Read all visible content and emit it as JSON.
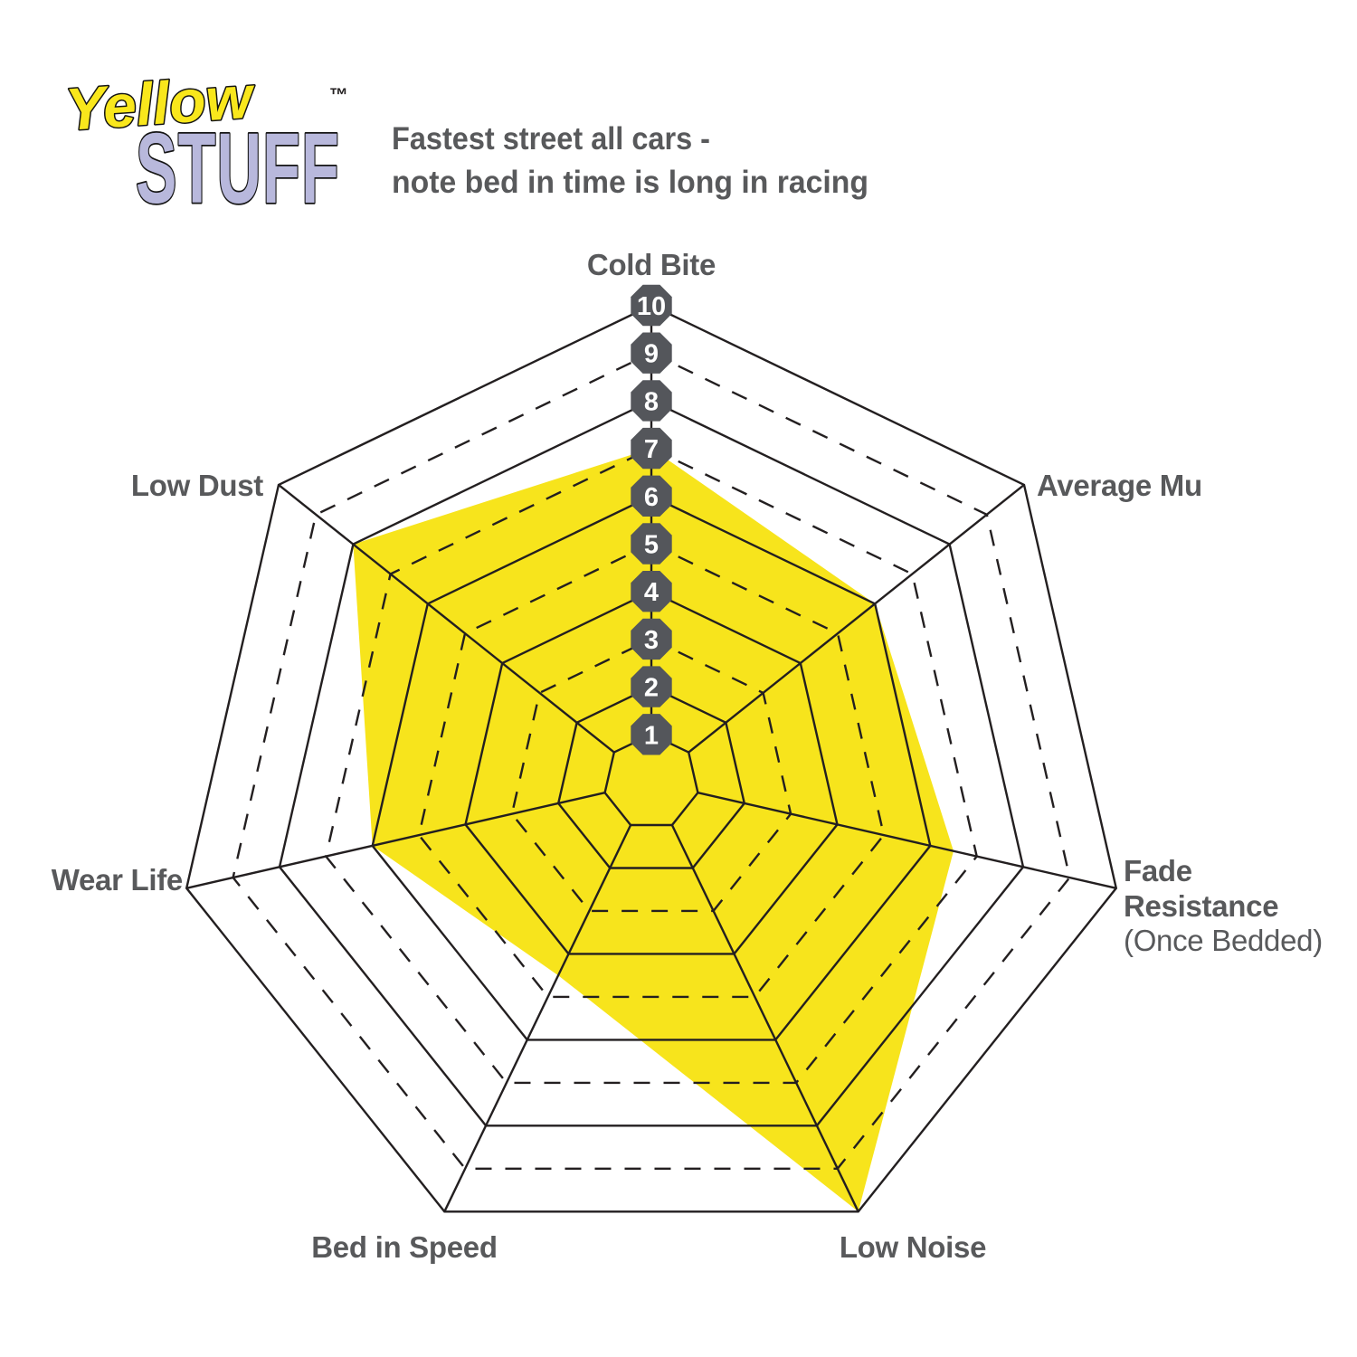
{
  "logo": {
    "word1": "Yellow",
    "word2": "STUFF",
    "trademark": "™",
    "word1_color": "#F9E71C",
    "word2_color": "#B8B8DC"
  },
  "header": {
    "line1": "Fastest street all cars -",
    "line2": "note bed in time is long in racing"
  },
  "chart_data": {
    "type": "radar",
    "axes": [
      "Cold Bite",
      "Average Mu",
      "Fade Resistance (Once Bedded)",
      "Low Noise",
      "Bed in Speed",
      "Wear Life",
      "Low Dust"
    ],
    "values": [
      7,
      6,
      6.5,
      10,
      4.5,
      6,
      8
    ],
    "values_by_axis": {
      "Cold Bite": 7,
      "Average Mu": 6,
      "Fade Resistance (Once Bedded)": 6.5,
      "Low Noise": 10,
      "Bed in Speed": 4.5,
      "Wear Life": 6,
      "Low Dust": 8
    },
    "scale_min": 1,
    "scale_max": 10,
    "tick_labels": [
      "1",
      "2",
      "3",
      "4",
      "5",
      "6",
      "7",
      "8",
      "9",
      "10"
    ],
    "grid": {
      "solid_rings": [
        1,
        2,
        4,
        6,
        8,
        10
      ],
      "dashed_rings": [
        3,
        5,
        7,
        9
      ],
      "legend": "none"
    },
    "axis_labels": [
      {
        "slug": "cold-bite",
        "lines": [
          {
            "text": "Cold Bite",
            "bold": true
          }
        ]
      },
      {
        "slug": "average-mu",
        "lines": [
          {
            "text": "Average Mu",
            "bold": true
          }
        ]
      },
      {
        "slug": "fade-resistance",
        "lines": [
          {
            "text": "Fade",
            "bold": true
          },
          {
            "text": "Resistance",
            "bold": true
          },
          {
            "text": "(Once Bedded)",
            "bold": false
          }
        ]
      },
      {
        "slug": "low-noise",
        "lines": [
          {
            "text": "Low Noise",
            "bold": true
          }
        ]
      },
      {
        "slug": "bed-in-speed",
        "lines": [
          {
            "text": "Bed in Speed",
            "bold": true
          }
        ]
      },
      {
        "slug": "wear-life",
        "lines": [
          {
            "text": "Wear Life",
            "bold": true
          }
        ]
      },
      {
        "slug": "low-dust",
        "lines": [
          {
            "text": "Low Dust",
            "bold": true
          }
        ]
      }
    ],
    "colors": {
      "fill": "#F7E41C",
      "grid": "#231F20",
      "badge": "#54565B",
      "badge_text": "#FFFFFF",
      "label": "#58595B"
    }
  }
}
